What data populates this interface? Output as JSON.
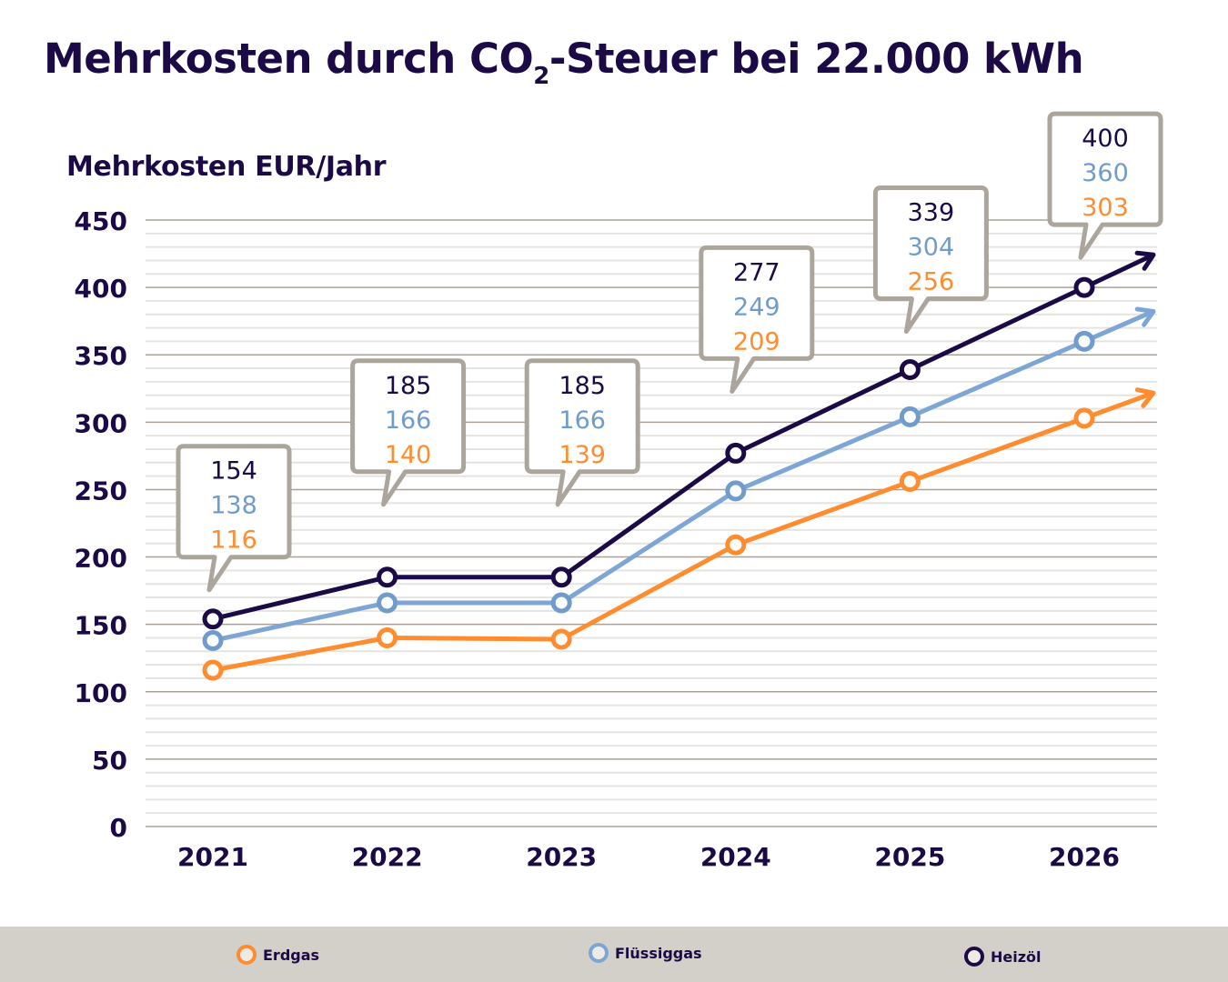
{
  "chart_data": {
    "type": "line",
    "title": "Mehrkosten durch CO2-Steuer bei 22.000 kWh",
    "title_parts": {
      "before": "Mehrkosten durch CO",
      "sub": "2",
      "after": "-Steuer bei 22.000 kWh"
    },
    "xlabel": "",
    "ylabel": "Mehrkosten EUR/Jahr",
    "ylim": [
      0,
      450
    ],
    "yticks": [
      0,
      50,
      100,
      150,
      200,
      250,
      300,
      350,
      400,
      450
    ],
    "minor_grid_step": 10,
    "grid": true,
    "categories": [
      "2021",
      "2022",
      "2023",
      "2024",
      "2025",
      "2026"
    ],
    "series": [
      {
        "name": "Heizöl",
        "color": "#1b0a45",
        "values": [
          154,
          185,
          185,
          277,
          339,
          400
        ]
      },
      {
        "name": "Flüssiggas",
        "color": "#7ea6d4",
        "label_color": "#6f9ccb",
        "values": [
          138,
          166,
          166,
          249,
          304,
          360
        ]
      },
      {
        "name": "Erdgas",
        "color": "#ff8c2f",
        "values": [
          116,
          140,
          139,
          209,
          256,
          303
        ]
      }
    ],
    "annotations": "Callout boxes above each year list Heizöl / Flüssiggas / Erdgas values; lines end in arrows pointing right",
    "legend_position": "bottom"
  },
  "legend": [
    {
      "label": "Erdgas",
      "color": "#ff8c2f"
    },
    {
      "label": "Flüssiggas",
      "color": "#7ea6d4"
    },
    {
      "label": "Heizöl",
      "color": "#1b0a45"
    }
  ],
  "colors": {
    "callout_border": "#aba59c",
    "major_grid": "#a8a29a",
    "minor_grid": "#e6e4e0",
    "legend_bg": "#d3d0ca"
  }
}
